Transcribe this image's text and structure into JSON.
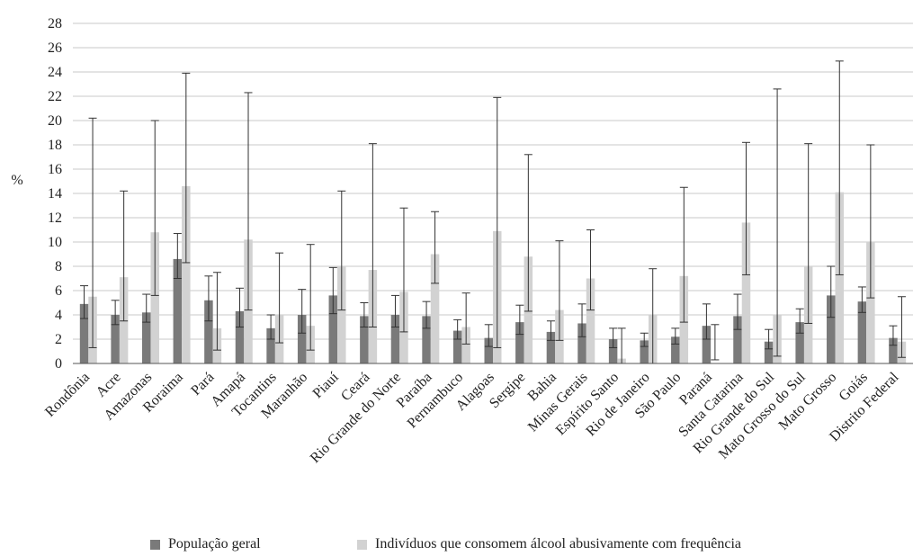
{
  "chart_data": {
    "type": "bar",
    "ylabel": "%",
    "ylim": [
      0,
      28
    ],
    "yticks": [
      "0",
      "2",
      "4",
      "6",
      "8",
      "10",
      "12",
      "14",
      "16",
      "18",
      "20",
      "22",
      "24",
      "26",
      "28"
    ],
    "grid": true,
    "legend_position": "bottom",
    "categories": [
      "Rondônia",
      "Acre",
      "Amazonas",
      "Roraima",
      "Pará",
      "Amapá",
      "Tocantins",
      "Maranhão",
      "Piauí",
      "Ceará",
      "Rio Grande do Norte",
      "Paraíba",
      "Pernambuco",
      "Alagoas",
      "Sergipe",
      "Bahia",
      "Minas Gerais",
      "Espírito Santo",
      "Rio de Janeiro",
      "São Paulo",
      "Paraná",
      "Santa Catarina",
      "Rio Grande do Sul",
      "Mato Grosso do Sul",
      "Mato Grosso",
      "Goiás",
      "Distrito Federal"
    ],
    "series": [
      {
        "name": "População geral",
        "color": "#7a7a7a",
        "values": [
          4.9,
          4.0,
          4.2,
          8.6,
          5.2,
          4.3,
          2.9,
          4.0,
          5.6,
          3.9,
          4.0,
          3.9,
          2.7,
          2.1,
          3.4,
          2.6,
          3.3,
          2.0,
          1.9,
          2.2,
          3.1,
          3.9,
          1.8,
          3.4,
          5.6,
          5.1,
          2.1
        ],
        "error_low": [
          3.7,
          3.2,
          3.4,
          7.0,
          3.5,
          3.0,
          2.0,
          2.5,
          4.1,
          3.0,
          3.0,
          2.9,
          2.0,
          1.4,
          2.4,
          1.9,
          2.2,
          1.3,
          1.4,
          1.6,
          2.0,
          2.8,
          1.2,
          2.5,
          3.8,
          4.2,
          1.5
        ],
        "error_high": [
          6.4,
          5.2,
          5.7,
          10.7,
          7.2,
          6.2,
          4.0,
          6.1,
          7.9,
          5.0,
          5.6,
          5.1,
          3.6,
          3.2,
          4.8,
          3.5,
          4.9,
          2.9,
          2.5,
          2.9,
          4.9,
          5.7,
          2.8,
          4.5,
          8.0,
          6.3,
          3.1
        ]
      },
      {
        "name": "Indivíduos que consomem álcool abusivamente com frequência",
        "color": "#d2d2d2",
        "values": [
          5.5,
          7.1,
          10.8,
          14.6,
          2.9,
          10.2,
          4.0,
          3.1,
          8.0,
          7.7,
          5.9,
          9.0,
          3.0,
          10.9,
          8.8,
          4.4,
          7.0,
          0.4,
          4.0,
          7.2,
          0.0,
          11.6,
          4.0,
          8.0,
          14.1,
          10.0,
          1.8
        ],
        "error_low": [
          1.3,
          3.5,
          5.6,
          8.3,
          1.1,
          4.4,
          1.7,
          1.1,
          4.4,
          3.0,
          2.6,
          6.6,
          1.6,
          1.3,
          4.3,
          1.9,
          4.4,
          0.0,
          0.0,
          3.4,
          0.3,
          7.3,
          0.6,
          3.3,
          7.3,
          5.4,
          0.5
        ],
        "error_high": [
          20.2,
          14.2,
          20.0,
          23.9,
          7.5,
          22.3,
          9.1,
          9.8,
          14.2,
          18.1,
          12.8,
          12.5,
          5.8,
          21.9,
          17.2,
          10.1,
          11.0,
          2.9,
          7.8,
          14.5,
          3.2,
          18.2,
          22.6,
          18.1,
          24.9,
          18.0,
          5.5
        ]
      }
    ]
  }
}
